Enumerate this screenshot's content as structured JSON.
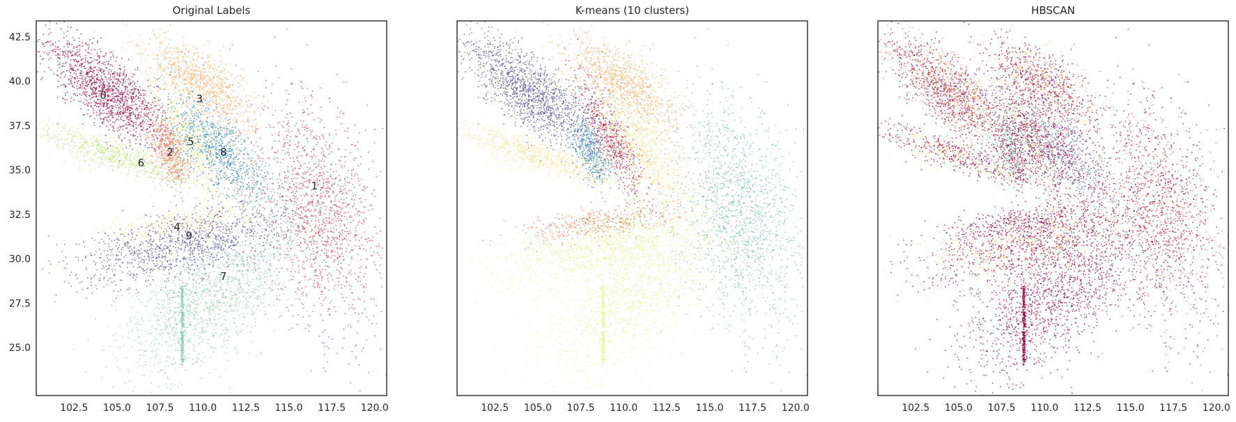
{
  "chart_data": [
    {
      "type": "scatter",
      "title": "Original Labels",
      "xlim": [
        100.3,
        120.7
      ],
      "ylim": [
        22.3,
        43.4
      ],
      "xticks": [
        "102.5",
        "105.0",
        "107.5",
        "110.0",
        "112.5",
        "115.0",
        "117.5",
        "120.0"
      ],
      "yticks": [
        "25.0",
        "27.5",
        "30.0",
        "32.5",
        "35.0",
        "37.5",
        "40.0",
        "42.5"
      ],
      "show_yticks": true,
      "grid": false,
      "palette": [
        "#9e0142",
        "#d53e4f",
        "#f46d43",
        "#fdae61",
        "#fee08b",
        "#ffffbf",
        "#e6f598",
        "#abdda4",
        "#66c2a5",
        "#3288bd",
        "#5e4fa2"
      ],
      "cluster_labels": [
        {
          "text": "0",
          "x": 104.2,
          "y": 39.2
        },
        {
          "text": "1",
          "x": 116.5,
          "y": 34.1
        },
        {
          "text": "2",
          "x": 108.1,
          "y": 36.0
        },
        {
          "text": "3",
          "x": 109.8,
          "y": 39.0
        },
        {
          "text": "4",
          "x": 108.5,
          "y": 31.8
        },
        {
          "text": "5",
          "x": 109.3,
          "y": 36.6
        },
        {
          "text": "6",
          "x": 106.4,
          "y": 35.4
        },
        {
          "text": "7",
          "x": 111.2,
          "y": 29.0
        },
        {
          "text": "8",
          "x": 111.2,
          "y": 36.0
        },
        {
          "text": "9",
          "x": 109.2,
          "y": 31.3
        }
      ]
    },
    {
      "type": "scatter",
      "title": "K-means (10 clusters)",
      "xlim": [
        100.3,
        120.7
      ],
      "ylim": [
        22.3,
        43.4
      ],
      "xticks": [
        "102.5",
        "105.0",
        "107.5",
        "110.0",
        "112.5",
        "115.0",
        "117.5",
        "120.0"
      ],
      "yticks": [],
      "show_yticks": false,
      "grid": false
    },
    {
      "type": "scatter",
      "title": "HBSCAN",
      "xlim": [
        100.3,
        120.7
      ],
      "ylim": [
        22.3,
        43.4
      ],
      "xticks": [
        "102.5",
        "105.0",
        "107.5",
        "110.0",
        "112.5",
        "115.0",
        "117.5",
        "120.0"
      ],
      "yticks": [],
      "show_yticks": false,
      "grid": false,
      "noise_color": "#9e0142"
    }
  ]
}
